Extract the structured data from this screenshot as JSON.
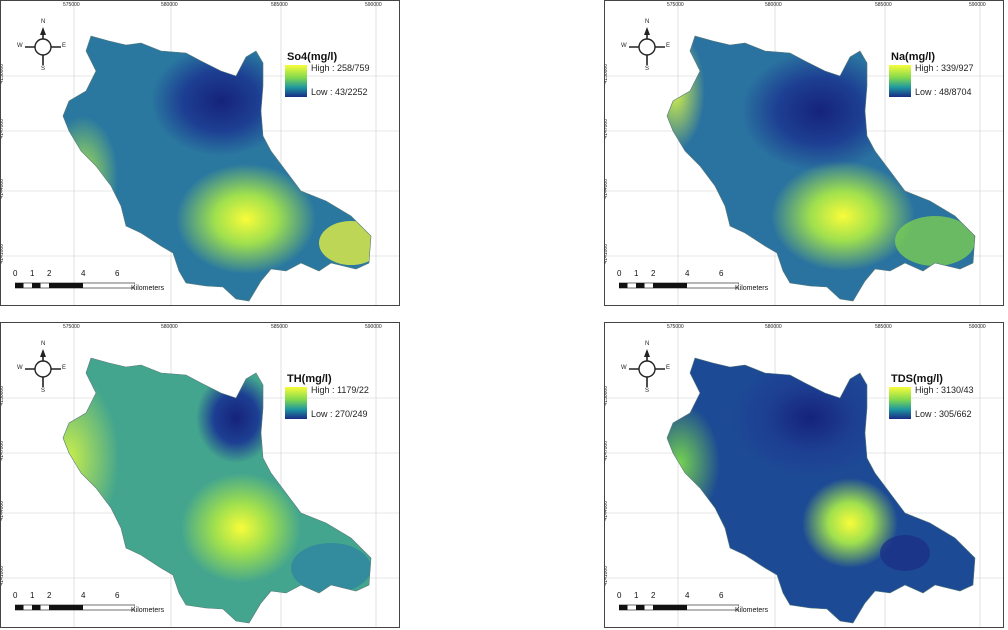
{
  "coordinates": {
    "x_ticks": [
      "575000",
      "580000",
      "585000",
      "590000"
    ],
    "y_ticks": [
      "4150000",
      "4147000",
      "4144000",
      "4141000"
    ]
  },
  "compass": {
    "n": "N",
    "s": "S",
    "e": "E",
    "w": "W"
  },
  "scale": {
    "ticks": [
      "0",
      "1",
      "2",
      "4",
      "6"
    ],
    "unit": "Kilometers"
  },
  "colors": {
    "high": "#f8fc3a",
    "mid": "#7fd84e",
    "low_mid": "#1f97a0",
    "low": "#1a2b86"
  },
  "maps": [
    {
      "title": "So4(mg/l)",
      "high": "High : 258/759",
      "low": "Low : 43/2252"
    },
    {
      "title": "Na(mg/l)",
      "high": "High : 339/927",
      "low": "Low : 48/8704"
    },
    {
      "title": "TH(mg/l)",
      "high": "High : 1179/22",
      "low": "Low : 270/249"
    },
    {
      "title": "TDS(mg/l)",
      "high": "High : 3130/43",
      "low": "Low : 305/662"
    }
  ]
}
